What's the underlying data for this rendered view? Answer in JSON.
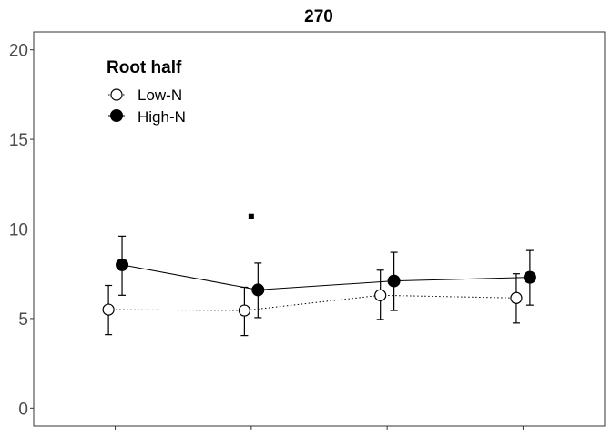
{
  "chart_data": {
    "type": "line",
    "title": "270",
    "xlabel": "",
    "ylabel": "",
    "x_positions": [
      1,
      2,
      3,
      4
    ],
    "x_tick_labels": [
      "",
      "",
      "",
      ""
    ],
    "ylim": [
      -1,
      21
    ],
    "xlim": [
      0.4,
      4.6
    ],
    "y_ticks": [
      0,
      5,
      10,
      15,
      20
    ],
    "y_tick_labels": [
      "0",
      "5",
      "10",
      "15",
      "20"
    ],
    "grid": false,
    "legend": {
      "title": "Root half",
      "placement": "top-left",
      "entries": [
        "Low-N",
        "High-N"
      ]
    },
    "series": [
      {
        "name": "Low-N",
        "marker": "open-circle",
        "line_style": "dotted",
        "values": [
          5.5,
          5.45,
          6.3,
          6.15
        ],
        "err_low": [
          4.1,
          4.05,
          4.95,
          4.75
        ],
        "err_high": [
          6.85,
          6.75,
          7.7,
          7.5
        ]
      },
      {
        "name": "High-N",
        "marker": "filled-circle",
        "line_style": "solid",
        "values": [
          8.0,
          6.6,
          7.1,
          7.3
        ],
        "err_low": [
          6.3,
          5.05,
          5.45,
          5.75
        ],
        "err_high": [
          9.6,
          8.1,
          8.7,
          8.8
        ]
      }
    ],
    "annotations": [
      {
        "type": "square-marker",
        "x": 2.0,
        "y": 10.7
      }
    ],
    "colors": {
      "axis": "#333333",
      "marker": "#000000",
      "tick_text": "#4d4d4d"
    }
  }
}
